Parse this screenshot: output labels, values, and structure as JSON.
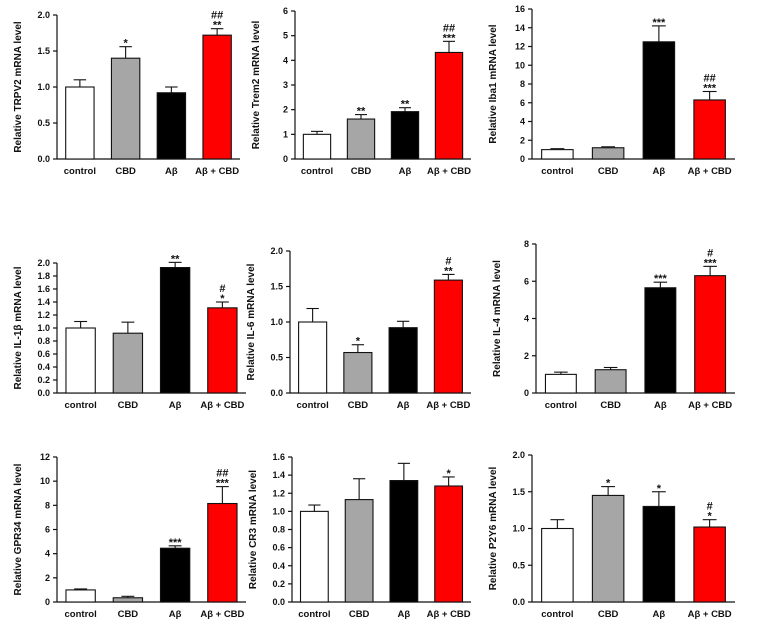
{
  "figure": {
    "colors": {
      "control": "#ffffff",
      "cbd": "#a6a6a6",
      "abeta": "#000000",
      "abeta_cbd": "#ff0000"
    },
    "categories": [
      "control",
      "CBD",
      "Aβ",
      "Aβ + CBD"
    ]
  },
  "chart_data": [
    {
      "type": "bar",
      "ylabel": "Relative TRPV2 mRNA level",
      "ylim": [
        0,
        2.0
      ],
      "yticks": [
        "0.0",
        "0.5",
        "1.0",
        "1.5",
        "2.0"
      ],
      "categories": [
        "control",
        "CBD",
        "Aβ",
        "Aβ + CBD"
      ],
      "values": [
        1.0,
        1.4,
        0.92,
        1.72
      ],
      "errors": [
        0.1,
        0.16,
        0.08,
        0.09
      ],
      "annotations": [
        [],
        [
          "*"
        ],
        [],
        [
          "##",
          "**"
        ]
      ]
    },
    {
      "type": "bar",
      "ylabel": "Relative Trem2 mRNA level",
      "ylim": [
        0,
        6
      ],
      "yticks": [
        "0",
        "1",
        "2",
        "3",
        "4",
        "5",
        "6"
      ],
      "categories": [
        "control",
        "CBD",
        "Aβ",
        "Aβ + CBD"
      ],
      "values": [
        1.0,
        1.62,
        1.92,
        4.32
      ],
      "errors": [
        0.12,
        0.18,
        0.16,
        0.45
      ],
      "annotations": [
        [],
        [
          "**"
        ],
        [
          "**"
        ],
        [
          "##",
          "***"
        ]
      ]
    },
    {
      "type": "bar",
      "ylabel": "Relative Iba1 mRNA level",
      "ylim": [
        0,
        16
      ],
      "yticks": [
        "0",
        "2",
        "4",
        "6",
        "8",
        "10",
        "12",
        "14",
        "16"
      ],
      "categories": [
        "control",
        "CBD",
        "Aβ",
        "Aβ + CBD"
      ],
      "values": [
        1.0,
        1.2,
        12.5,
        6.3
      ],
      "errors": [
        0.1,
        0.1,
        1.7,
        0.9
      ],
      "annotations": [
        [],
        [],
        [
          "***"
        ],
        [
          "##",
          "***"
        ]
      ]
    },
    {
      "type": "bar",
      "ylabel": "Relative IL-1β mRNA level",
      "ylim": [
        0,
        2.0
      ],
      "yticks": [
        "0.0",
        "0.2",
        "0.4",
        "0.6",
        "0.8",
        "1.0",
        "1.2",
        "1.4",
        "1.6",
        "1.8",
        "2.0"
      ],
      "categories": [
        "control",
        "CBD",
        "Aβ",
        "Aβ + CBD"
      ],
      "values": [
        1.0,
        0.92,
        1.93,
        1.31
      ],
      "errors": [
        0.1,
        0.17,
        0.08,
        0.09
      ],
      "annotations": [
        [],
        [],
        [
          "**"
        ],
        [
          "#",
          "*"
        ]
      ]
    },
    {
      "type": "bar",
      "ylabel": "Relative IL-6 mRNA level",
      "ylim": [
        0,
        2.0
      ],
      "yticks": [
        "0.0",
        "0.5",
        "1.0",
        "1.5",
        "2.0"
      ],
      "categories": [
        "control",
        "CBD",
        "Aβ",
        "Aβ + CBD"
      ],
      "values": [
        1.0,
        0.57,
        0.92,
        1.59
      ],
      "errors": [
        0.19,
        0.11,
        0.09,
        0.08
      ],
      "annotations": [
        [],
        [
          "*"
        ],
        [],
        [
          "#",
          "**"
        ]
      ]
    },
    {
      "type": "bar",
      "ylabel": "Relative IL-4 mRNA level",
      "ylim": [
        0,
        8
      ],
      "yticks": [
        "0",
        "2",
        "4",
        "6",
        "8"
      ],
      "categories": [
        "control",
        "CBD",
        "Aβ",
        "Aβ + CBD"
      ],
      "values": [
        1.0,
        1.25,
        5.65,
        6.3
      ],
      "errors": [
        0.12,
        0.12,
        0.3,
        0.5
      ],
      "annotations": [
        [],
        [],
        [
          "***"
        ],
        [
          "#",
          "***"
        ]
      ]
    },
    {
      "type": "bar",
      "ylabel": "Relative GPR34 mRNA level",
      "ylim": [
        0,
        12
      ],
      "yticks": [
        "0",
        "2",
        "4",
        "6",
        "8",
        "10",
        "12"
      ],
      "categories": [
        "control",
        "CBD",
        "Aβ",
        "Aβ + CBD"
      ],
      "values": [
        1.0,
        0.35,
        4.45,
        8.15
      ],
      "errors": [
        0.08,
        0.12,
        0.2,
        1.4
      ],
      "annotations": [
        [],
        [],
        [
          "***"
        ],
        [
          "##",
          "***"
        ]
      ]
    },
    {
      "type": "bar",
      "ylabel": "Relative CR3 mRNA level",
      "ylim": [
        0,
        1.6
      ],
      "yticks": [
        "0.0",
        "0.2",
        "0.4",
        "0.6",
        "0.8",
        "1.0",
        "1.2",
        "1.4",
        "1.6"
      ],
      "categories": [
        "control",
        "CBD",
        "Aβ",
        "Aβ + CBD"
      ],
      "values": [
        1.0,
        1.13,
        1.34,
        1.28
      ],
      "errors": [
        0.07,
        0.23,
        0.19,
        0.1
      ],
      "annotations": [
        [],
        [],
        [],
        [
          "*"
        ]
      ]
    },
    {
      "type": "bar",
      "ylabel": "Relative P2Y6 mRNA level",
      "ylim": [
        0,
        2.0
      ],
      "yticks": [
        "0.0",
        "0.5",
        "1.0",
        "1.5",
        "2.0"
      ],
      "categories": [
        "control",
        "CBD",
        "Aβ",
        "Aβ + CBD"
      ],
      "values": [
        1.0,
        1.45,
        1.3,
        1.02
      ],
      "errors": [
        0.12,
        0.12,
        0.2,
        0.1
      ],
      "annotations": [
        [],
        [
          "*"
        ],
        [
          "*"
        ],
        [
          "#",
          "*"
        ]
      ]
    }
  ]
}
